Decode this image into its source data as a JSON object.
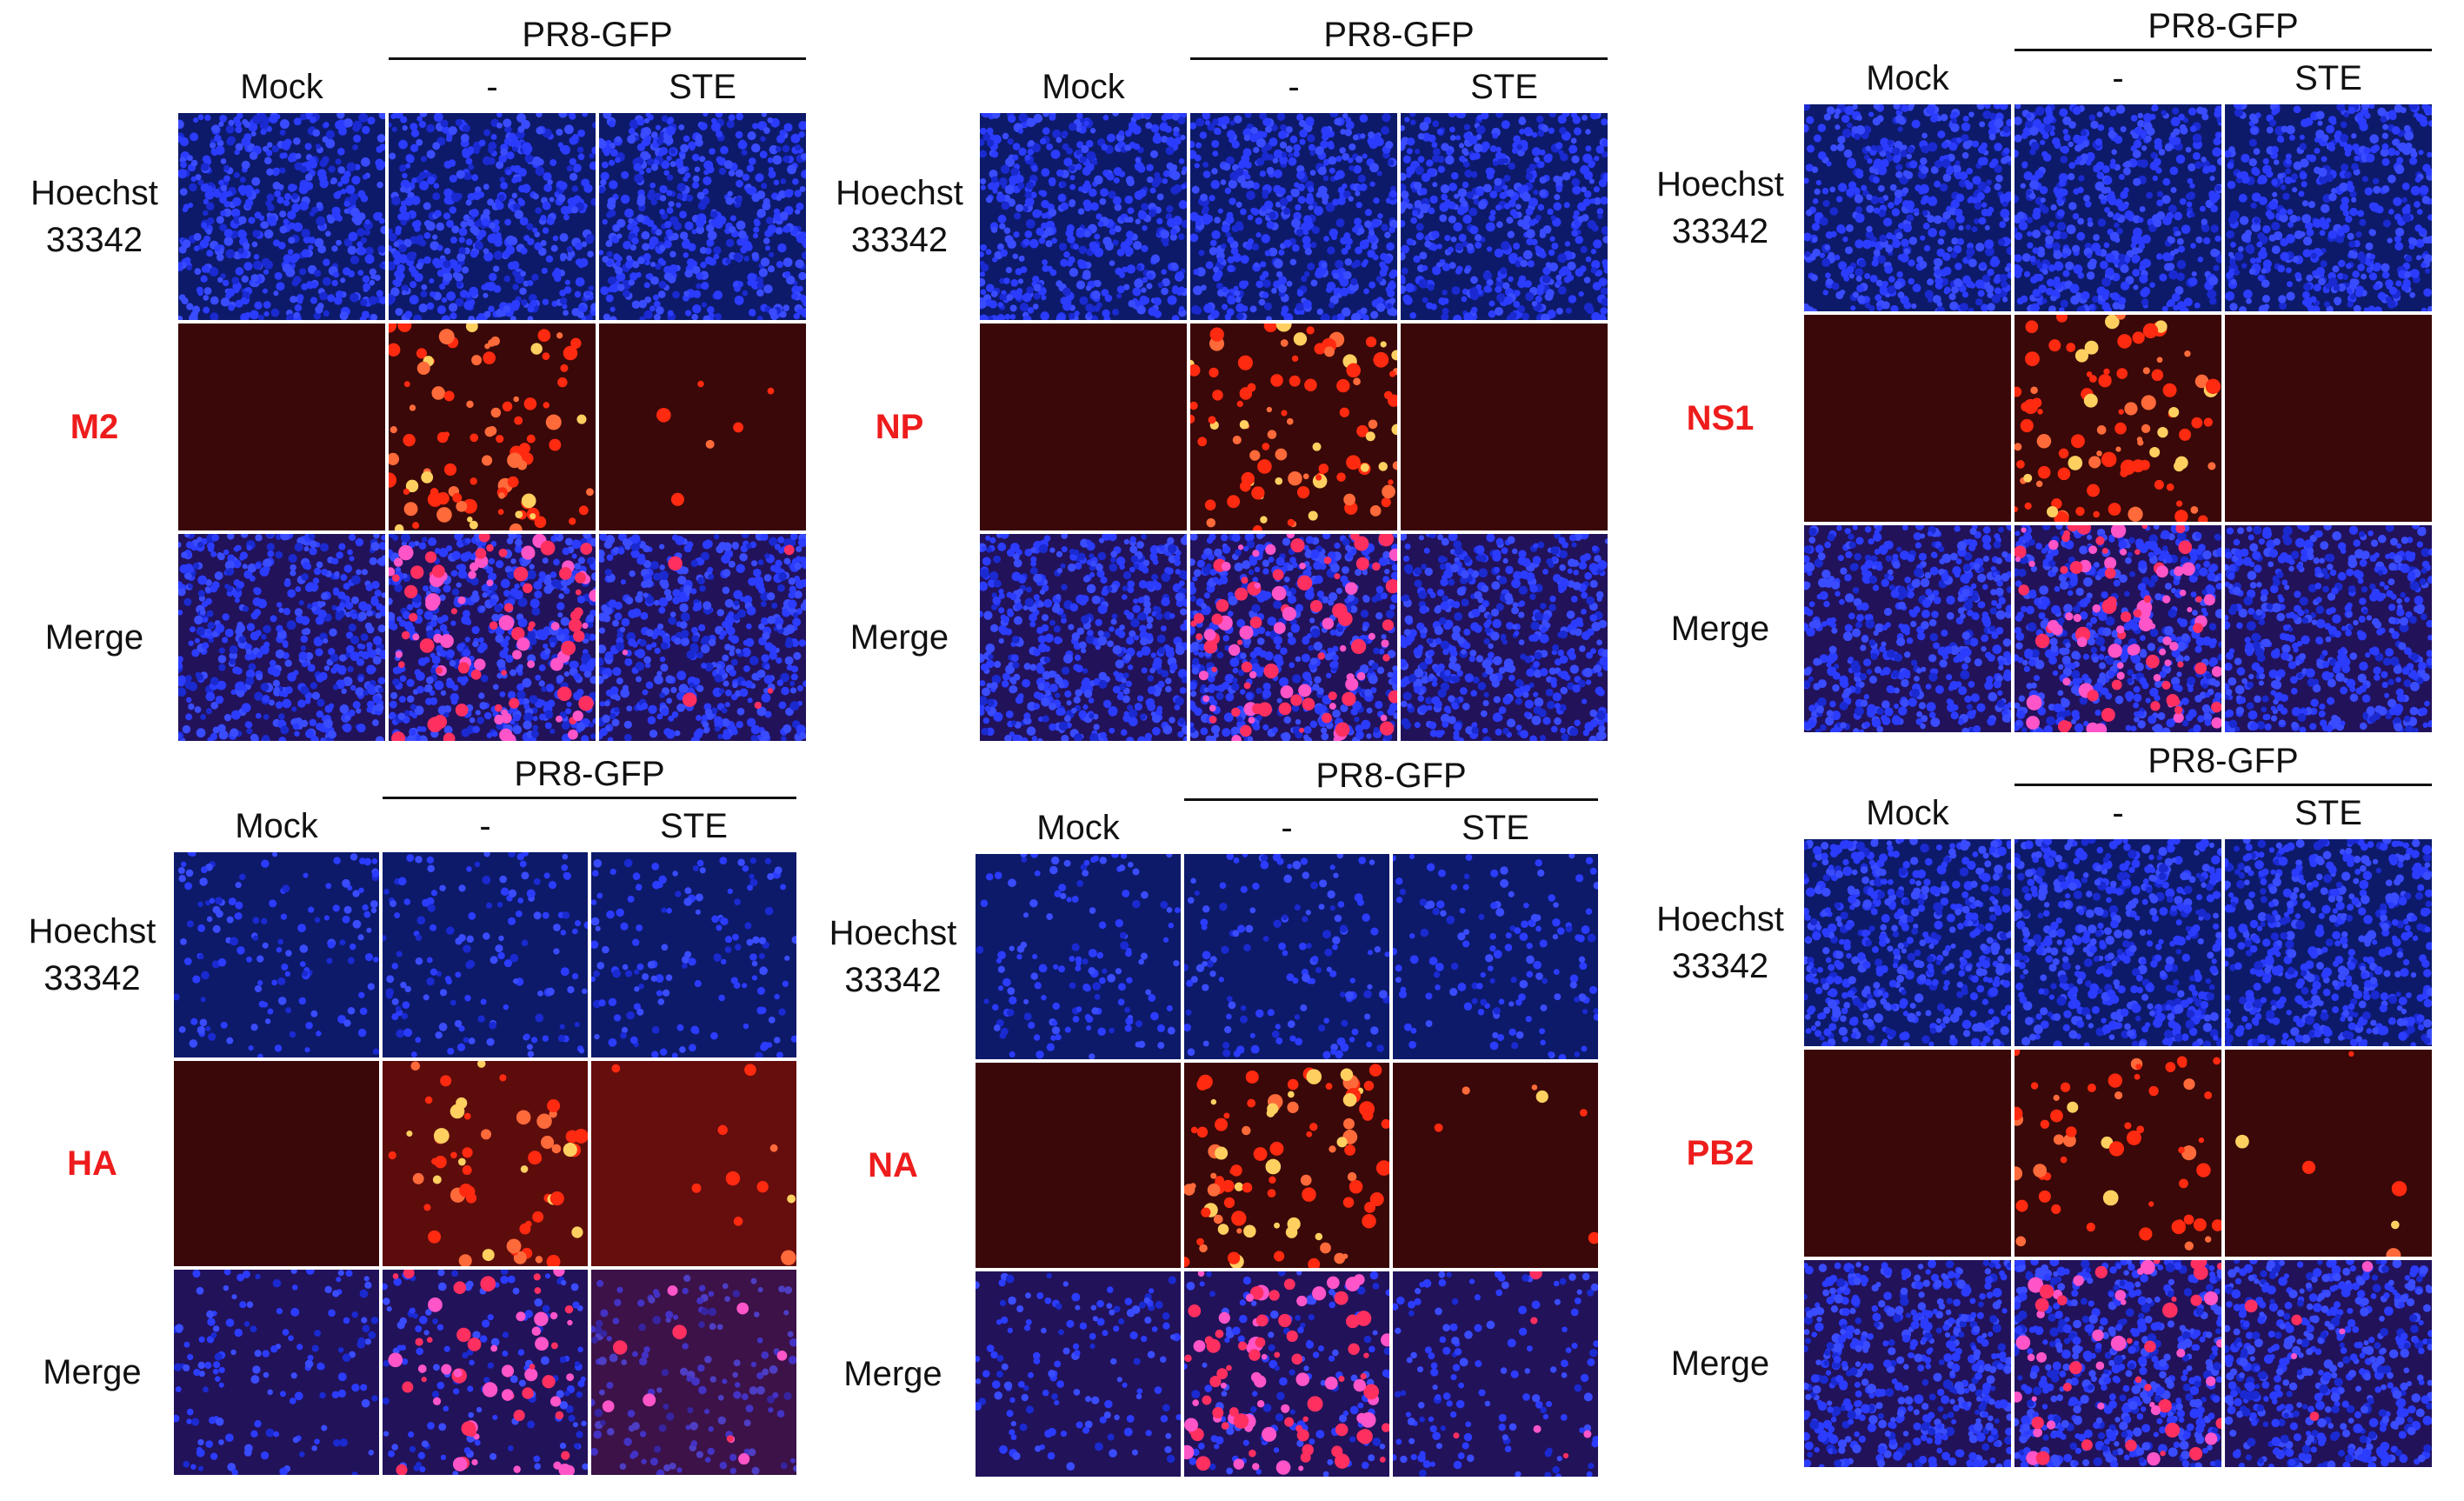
{
  "group_label": "PR8-GFP",
  "columns": [
    "Mock",
    "-",
    "STE"
  ],
  "rows_common": {
    "top": [
      "Hoechst",
      "33342"
    ],
    "bottom": "Merge"
  },
  "panels": [
    {
      "id": "m2",
      "stain": "M2",
      "density": "dense",
      "infected": "high",
      "treated": "low"
    },
    {
      "id": "np",
      "stain": "NP",
      "density": "dense",
      "infected": "high",
      "treated": "none"
    },
    {
      "id": "ns1",
      "stain": "NS1",
      "density": "dense",
      "infected": "high",
      "treated": "none"
    },
    {
      "id": "ha",
      "stain": "HA",
      "density": "sparse",
      "infected": "medium",
      "treated": "haze"
    },
    {
      "id": "na",
      "stain": "NA",
      "density": "sparse",
      "infected": "high",
      "treated": "low"
    },
    {
      "id": "pb2",
      "stain": "PB2",
      "density": "dense",
      "infected": "medium",
      "treated": "low"
    }
  ],
  "colors": {
    "nuclei": "#2b3cff",
    "antibody": "#ff2a10",
    "stain_label": "#ee1c1c"
  }
}
